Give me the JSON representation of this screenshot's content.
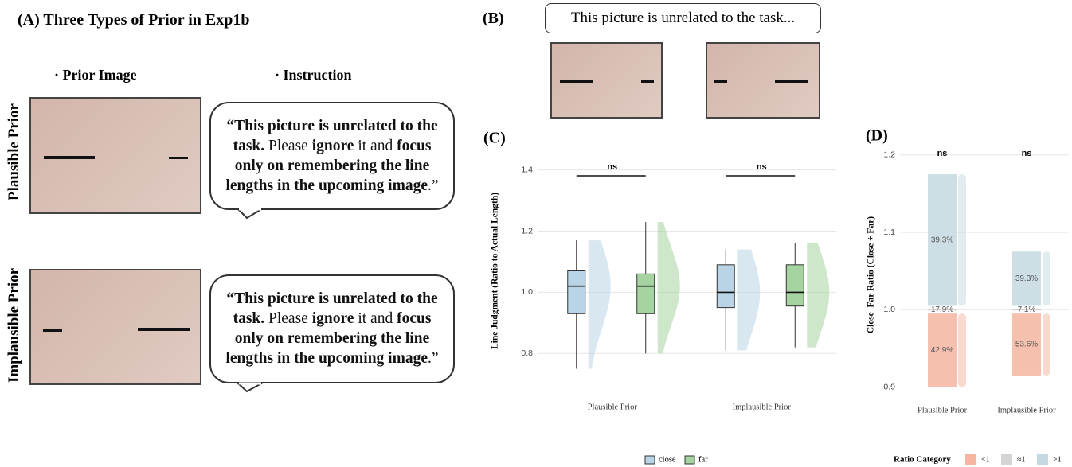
{
  "panel_a": {
    "title": "(A) Three Types of Prior in Exp1b",
    "columns": [
      "· Prior Image",
      "· Instruction"
    ],
    "rows": [
      {
        "label": "Plausible Prior",
        "bubble": [
          {
            "text": "“This picture is unrelated to the task.",
            "bold": true
          },
          {
            "text": " Please ",
            "bold": false
          },
          {
            "text": "ignore",
            "bold": true
          },
          {
            "text": " it and ",
            "bold": false
          },
          {
            "text": "focus",
            "bold": true
          },
          {
            "text": " only on remembering the line lengths in the upcoming image",
            "bold": true
          },
          {
            "text": ".”",
            "bold": false
          }
        ]
      },
      {
        "label": "Implausible Prior",
        "bubble": [
          {
            "text": "“This picture is unrelated to the task.",
            "bold": true
          },
          {
            "text": " Please ",
            "bold": false
          },
          {
            "text": "ignore",
            "bold": true
          },
          {
            "text": " it and ",
            "bold": false
          },
          {
            "text": "focus",
            "bold": true
          },
          {
            "text": " only on remembering the line lengths in the upcoming image",
            "bold": true
          },
          {
            "text": ".”",
            "bold": false
          }
        ]
      }
    ]
  },
  "panel_b": {
    "label": "(B)",
    "bubble": "This picture is unrelated to the task..."
  },
  "chart_data": [
    {
      "type": "box",
      "label": "(C)",
      "ylabel": "Line Judgment (Ratio to Actual Length)",
      "categories": [
        "Plausible Prior",
        "Implausible Prior"
      ],
      "ylim": [
        0.72,
        1.42
      ],
      "yticks": [
        0.8,
        {
          "value": 1.0,
          "label": "1.0"
        },
        1.2,
        1.4
      ],
      "grid": true,
      "annotations": [
        "ns",
        "ns"
      ],
      "series": [
        {
          "name": "close",
          "color": "#b9d4e6",
          "min": [
            0.75,
            0.81
          ],
          "q1": [
            0.93,
            0.95
          ],
          "median": [
            1.02,
            1.0
          ],
          "q3": [
            1.07,
            1.09
          ],
          "max": [
            1.17,
            1.14
          ]
        },
        {
          "name": "far",
          "color": "#a6d4a0",
          "min": [
            0.8,
            0.82
          ],
          "q1": [
            0.93,
            0.955
          ],
          "median": [
            1.02,
            1.0
          ],
          "q3": [
            1.06,
            1.09
          ],
          "max": [
            1.23,
            1.16
          ]
        }
      ]
    },
    {
      "type": "range",
      "label": "(D)",
      "ylabel": "Close–Far Ratio (Close ÷ Far)",
      "categories": [
        "Plausible Prior",
        "Implausible Prior"
      ],
      "ylim": [
        0.88,
        1.21
      ],
      "yticks": [
        0.9,
        {
          "value": 1.0,
          "label": "1.0"
        },
        1.1,
        1.2
      ],
      "grid": true,
      "annotations": [
        "ns",
        "ns"
      ],
      "legend_title": "Ratio Category",
      "series": [
        {
          "name": "<1",
          "color": "#f5b5a0",
          "values": [
            42.9,
            53.6
          ],
          "value_labels": [
            "42.9%",
            "53.6%"
          ],
          "lower": [
            0.9,
            0.915
          ],
          "upper": [
            0.995,
            0.995
          ]
        },
        {
          "name": "≈1",
          "color": "#d4d4d4",
          "values": [
            17.9,
            7.1
          ],
          "value_labels": [
            "17.9%",
            "7.1%"
          ],
          "lower": [
            1.0,
            1.0
          ],
          "upper": [
            1.0,
            1.0
          ]
        },
        {
          "name": ">1",
          "color": "#c4d9e1",
          "values": [
            39.3,
            39.3
          ],
          "value_labels": [
            "39.3%",
            "39.3%"
          ],
          "lower": [
            1.005,
            1.005
          ],
          "upper": [
            1.175,
            1.075
          ]
        }
      ]
    }
  ]
}
